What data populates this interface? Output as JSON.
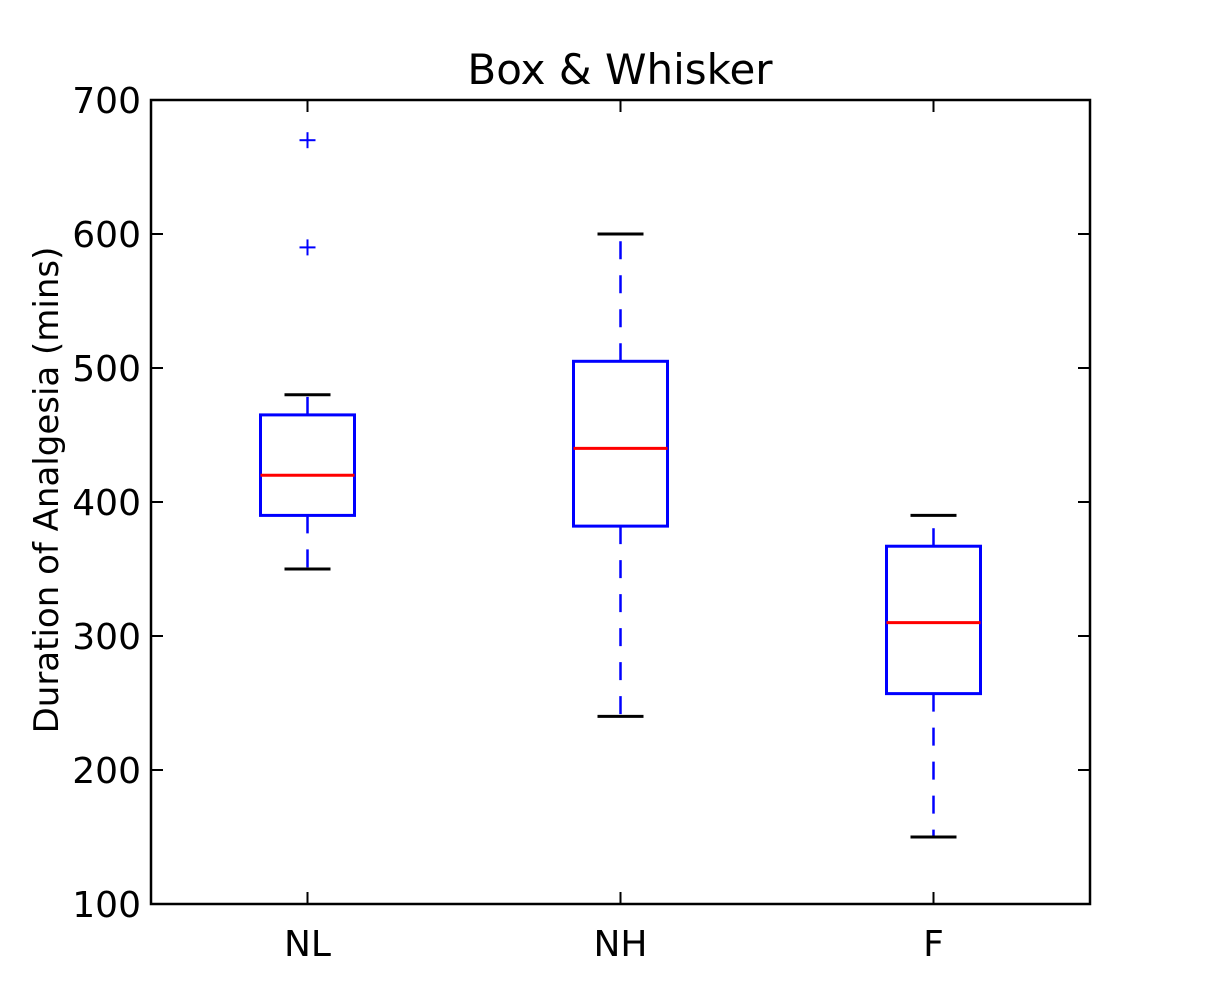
{
  "chart_data": {
    "type": "box",
    "title": "Box & Whisker",
    "xlabel": "",
    "ylabel": "Duration of Analgesia (mins)",
    "ylim": [
      100,
      700
    ],
    "yticks": [
      "100",
      "200",
      "300",
      "400",
      "500",
      "600",
      "700"
    ],
    "categories": [
      "NL",
      "NH",
      "F"
    ],
    "boxes": [
      {
        "category": "NL",
        "whisker_low": 350,
        "q1": 390,
        "median": 420,
        "q3": 465,
        "whisker_high": 480,
        "outliers": [
          590,
          670
        ]
      },
      {
        "category": "NH",
        "whisker_low": 240,
        "q1": 382,
        "median": 440,
        "q3": 505,
        "whisker_high": 600,
        "outliers": []
      },
      {
        "category": "F",
        "whisker_low": 150,
        "q1": 257,
        "median": 310,
        "q3": 367,
        "whisker_high": 390,
        "outliers": []
      }
    ],
    "grid": false,
    "colors": {
      "box": "#0000ff",
      "median": "#ff0000",
      "cap": "#000000",
      "outlier": "#0000ff",
      "axes": "#000000"
    }
  }
}
